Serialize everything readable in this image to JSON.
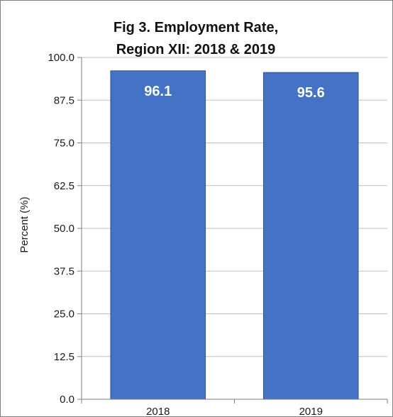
{
  "chart_data": {
    "type": "bar",
    "title_lines": [
      "Fig 3. Employment Rate,",
      "Region XII: 2018 & 2019"
    ],
    "categories": [
      "2018",
      "2019"
    ],
    "values": [
      96.1,
      95.6
    ],
    "data_labels": [
      "96.1",
      "95.6"
    ],
    "xlabel": "",
    "ylabel": "Percent (%)",
    "ylim": [
      0,
      100
    ],
    "yticks": [
      0,
      12.5,
      25,
      37.5,
      50,
      62.5,
      75,
      87.5,
      100
    ],
    "ytick_labels": [
      "0.0",
      "12.5",
      "25.0",
      "37.5",
      "50.0",
      "62.5",
      "75.0",
      "87.5",
      "100.0"
    ],
    "grid": true,
    "legend": "none",
    "colors": {
      "bar": "#4472c4",
      "bar_edge": "#2f5597",
      "grid": "#bfbfbf",
      "axis": "#7f7f7f"
    }
  }
}
